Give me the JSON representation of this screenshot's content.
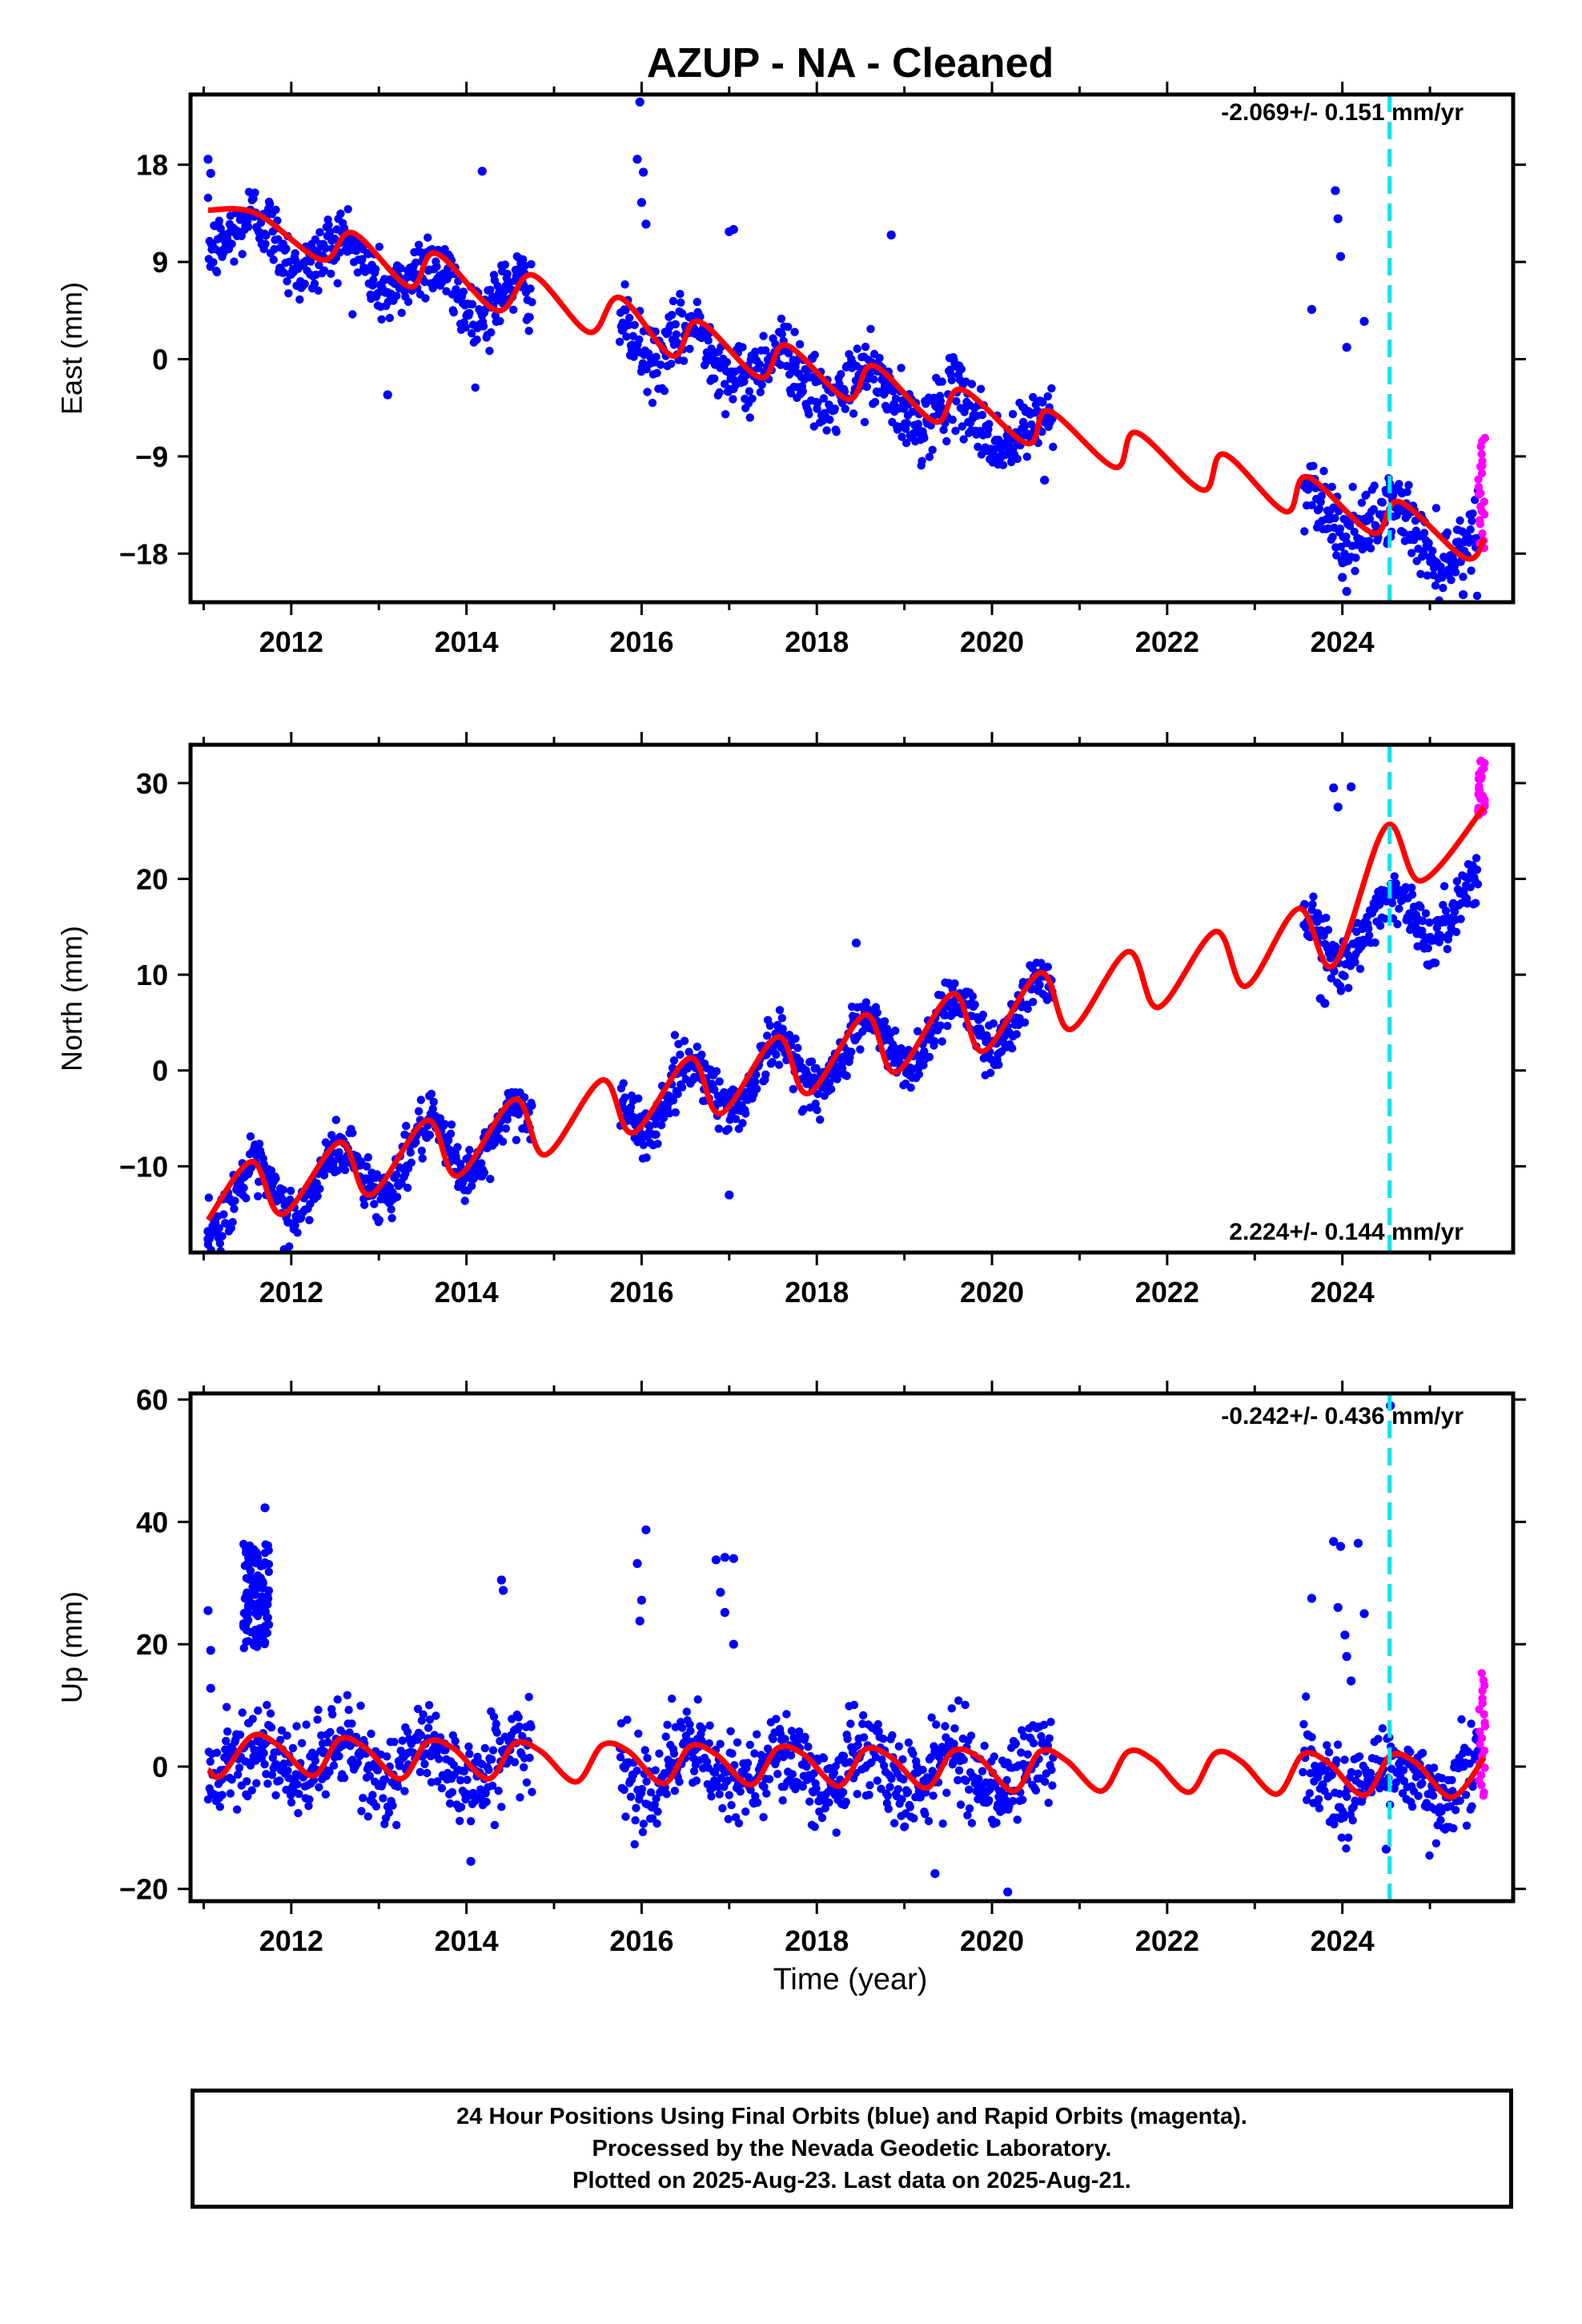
{
  "figure": {
    "title": "AZUP  - NA - Cleaned",
    "xlabel": "Time (year)",
    "x_ticks": [
      2012,
      2014,
      2016,
      2018,
      2020,
      2022,
      2024
    ],
    "colors": {
      "final": "#0000ff",
      "rapid": "#ff00ff",
      "model": "#ff0000",
      "event": "#00e5ee",
      "frame": "#000000"
    }
  },
  "caption": {
    "line1": "24 Hour Positions Using Final Orbits (blue) and Rapid Orbits (magenta).",
    "line2": "Processed by the Nevada Geodetic Laboratory.",
    "line3": "Plotted on 2025-Aug-23. Last data on 2025-Aug-21."
  },
  "chart_data": [
    {
      "type": "scatter",
      "ylabel": "East (mm)",
      "rate_label": "-2.069+/- 0.151 mm/yr",
      "xlim": [
        2010.85,
        2025.95
      ],
      "ylim": [
        -22.5,
        24.5
      ],
      "y_ticks": [
        18,
        9,
        0,
        -9,
        -18
      ],
      "y_tick_labels": [
        "18",
        "9",
        "0",
        "−9",
        "−18"
      ],
      "event_line_x": 2024.54,
      "trend": {
        "rate": -2.069,
        "intercept_at_2011": 12.5,
        "annual_amplitude": 2.0,
        "phase_peak": 0.6
      },
      "data_segments": [
        [
          2011.05,
          2014.75
        ],
        [
          2015.75,
          2020.7
        ],
        [
          2023.55,
          2025.55
        ]
      ],
      "noise": 1.6,
      "rapid_segment": [
        2025.55,
        2025.63
      ],
      "rapid_range": [
        -17.5,
        -7.2
      ],
      "outliers": [
        [
          2011.05,
          18.5
        ],
        [
          2011.08,
          17.2
        ],
        [
          2013.1,
          -3.3
        ],
        [
          2014.18,
          17.4
        ],
        [
          2015.95,
          18.5
        ],
        [
          2015.98,
          23.8
        ],
        [
          2016.02,
          17.3
        ],
        [
          2016.0,
          14.5
        ],
        [
          2016.05,
          12.5
        ],
        [
          2017.05,
          12.0
        ],
        [
          2017.0,
          11.8
        ],
        [
          2018.85,
          11.5
        ],
        [
          2020.6,
          -11.2
        ],
        [
          2023.65,
          4.6
        ],
        [
          2023.92,
          15.6
        ],
        [
          2023.95,
          13.0
        ],
        [
          2023.98,
          9.5
        ],
        [
          2024.25,
          3.5
        ],
        [
          2024.05,
          1.1
        ],
        [
          2024.0,
          -20.2
        ],
        [
          2024.05,
          -21.5
        ],
        [
          2025.38,
          -21.8
        ]
      ],
      "model_x": [
        2011.05,
        2011.6,
        2012.35,
        2012.7,
        2013.35,
        2013.65,
        2014.35,
        2014.75,
        2015.4,
        2015.75,
        2016.35,
        2016.65,
        2017.35,
        2017.65,
        2018.35,
        2018.65,
        2019.35,
        2019.65,
        2020.4,
        2020.65,
        2021.4,
        2021.65,
        2022.4,
        2022.65,
        2023.35,
        2023.6,
        2024.35,
        2024.65,
        2025.4,
        2025.62
      ],
      "model_y": [
        13.8,
        13.5,
        9.2,
        11.7,
        6.7,
        9.8,
        4.5,
        7.8,
        2.5,
        5.7,
        0.3,
        3.5,
        -1.7,
        1.3,
        -3.7,
        -0.6,
        -5.8,
        -2.8,
        -7.8,
        -4.8,
        -10.0,
        -6.8,
        -12.1,
        -8.8,
        -14.1,
        -10.9,
        -16.1,
        -13.2,
        -18.4,
        -16.6
      ]
    },
    {
      "type": "scatter",
      "ylabel": "North (mm)",
      "rate_label": "2.224+/- 0.144 mm/yr",
      "xlim": [
        2010.85,
        2025.95
      ],
      "ylim": [
        -19.0,
        34.0
      ],
      "y_ticks": [
        30,
        20,
        10,
        0,
        -10
      ],
      "y_tick_labels": [
        "30",
        "20",
        "10",
        "0",
        "−10"
      ],
      "event_line_x": 2024.54,
      "trend": {
        "rate": 2.224,
        "intercept_at_2011": -14.5,
        "annual_amplitude": 3.0,
        "phase_peak": 0.55
      },
      "data_segments": [
        [
          2011.05,
          2014.75
        ],
        [
          2015.75,
          2020.7
        ],
        [
          2023.55,
          2025.55
        ]
      ],
      "noise": 1.4,
      "rapid_segment": [
        2025.55,
        2025.63
      ],
      "rapid_range": [
        26.5,
        32.5
      ],
      "outliers": [
        [
          2011.05,
          -17.6
        ],
        [
          2011.05,
          -16.8
        ],
        [
          2017.0,
          -13.0
        ],
        [
          2018.45,
          13.3
        ],
        [
          2023.9,
          29.5
        ],
        [
          2023.95,
          27.5
        ],
        [
          2024.1,
          29.6
        ],
        [
          2023.75,
          7.5
        ],
        [
          2023.8,
          7.0
        ]
      ],
      "model_x": [
        2011.05,
        2011.55,
        2011.9,
        2012.55,
        2012.9,
        2013.55,
        2013.9,
        2014.55,
        2014.9,
        2015.55,
        2015.9,
        2016.55,
        2016.9,
        2017.55,
        2017.9,
        2018.55,
        2018.9,
        2019.55,
        2019.9,
        2020.55,
        2020.9,
        2021.55,
        2021.9,
        2022.55,
        2022.9,
        2023.5,
        2023.9,
        2024.5,
        2024.9,
        2025.62
      ],
      "model_y": [
        -15.6,
        -9.5,
        -15.0,
        -7.5,
        -13.0,
        -5.2,
        -11.0,
        -3.0,
        -8.8,
        -1.0,
        -6.5,
        1.3,
        -4.5,
        3.5,
        -2.4,
        5.8,
        -0.2,
        8.0,
        2.0,
        10.2,
        4.3,
        12.4,
        6.6,
        14.5,
        8.8,
        16.9,
        11.0,
        25.5,
        19.8,
        27.5
      ]
    },
    {
      "type": "scatter",
      "ylabel": "Up (mm)",
      "rate_label": "-0.242+/- 0.436 mm/yr",
      "xlim": [
        2010.85,
        2025.95
      ],
      "ylim": [
        -22.0,
        61.0
      ],
      "y_ticks": [
        60,
        40,
        20,
        0,
        -20
      ],
      "y_tick_labels": [
        "60",
        "40",
        "20",
        "0",
        "−20"
      ],
      "event_line_x": 2024.54,
      "trend": {
        "rate": -0.242,
        "intercept_at_2011": 1.2,
        "annual_amplitude": 3.0,
        "phase_peak": 0.55
      },
      "data_segments": [
        [
          2011.05,
          2014.75
        ],
        [
          2015.75,
          2020.7
        ],
        [
          2023.55,
          2025.55
        ]
      ],
      "noise": 3.6,
      "rapid_segment": [
        2025.55,
        2025.63
      ],
      "rapid_range": [
        -5.0,
        15.0
      ],
      "cluster": {
        "x": [
          2011.45,
          2011.75
        ],
        "y": [
          19.0,
          36.5
        ]
      },
      "outliers": [
        [
          2011.05,
          25.5
        ],
        [
          2011.08,
          19.0
        ],
        [
          2011.08,
          12.8
        ],
        [
          2011.7,
          42.3
        ],
        [
          2014.4,
          30.5
        ],
        [
          2014.42,
          28.8
        ],
        [
          2014.05,
          -15.5
        ],
        [
          2015.95,
          33.2
        ],
        [
          2016.0,
          27.2
        ],
        [
          2016.05,
          38.7
        ],
        [
          2015.98,
          23.8
        ],
        [
          2016.95,
          34.2
        ],
        [
          2016.85,
          33.8
        ],
        [
          2017.05,
          34.0
        ],
        [
          2016.9,
          28.5
        ],
        [
          2016.95,
          25.2
        ],
        [
          2017.05,
          20.0
        ],
        [
          2019.35,
          -17.5
        ],
        [
          2020.18,
          -20.5
        ],
        [
          2023.65,
          27.5
        ],
        [
          2023.9,
          36.8
        ],
        [
          2023.98,
          36.0
        ],
        [
          2024.18,
          36.5
        ],
        [
          2023.95,
          26.0
        ],
        [
          2024.03,
          21.5
        ],
        [
          2024.05,
          18.0
        ],
        [
          2024.1,
          14.0
        ],
        [
          2024.25,
          25.0
        ],
        [
          2024.55,
          59.0
        ],
        [
          2024.5,
          -13.5
        ]
      ],
      "model_x": [
        2011.05,
        2011.2,
        2011.55,
        2011.85,
        2012.25,
        2012.55,
        2012.85,
        2013.25,
        2013.55,
        2013.85,
        2014.25,
        2014.55,
        2014.85,
        2015.25,
        2015.55,
        2015.85,
        2016.25,
        2016.55,
        2016.85,
        2017.25,
        2017.55,
        2017.85,
        2018.25,
        2018.55,
        2018.85,
        2019.25,
        2019.55,
        2019.85,
        2020.25,
        2020.55,
        2020.85,
        2021.25,
        2021.55,
        2021.85,
        2022.25,
        2022.55,
        2022.85,
        2023.25,
        2023.55,
        2023.85,
        2024.25,
        2024.55,
        2024.85,
        2025.25,
        2025.62
      ],
      "model_y": [
        -0.5,
        -1.5,
        5.0,
        3.5,
        -1.5,
        4.5,
        3.0,
        -2.0,
        4.0,
        3.0,
        -2.0,
        3.8,
        2.5,
        -2.5,
        3.5,
        2.5,
        -2.8,
        3.3,
        2.0,
        -3.0,
        3.0,
        2.0,
        -3.2,
        2.8,
        1.5,
        -3.5,
        2.5,
        1.5,
        -4.0,
        2.5,
        1.0,
        -4.0,
        2.4,
        1.0,
        -4.2,
        2.2,
        0.8,
        -4.5,
        2.0,
        0.5,
        -4.7,
        1.8,
        0.5,
        -5.0,
        1.5
      ]
    }
  ]
}
